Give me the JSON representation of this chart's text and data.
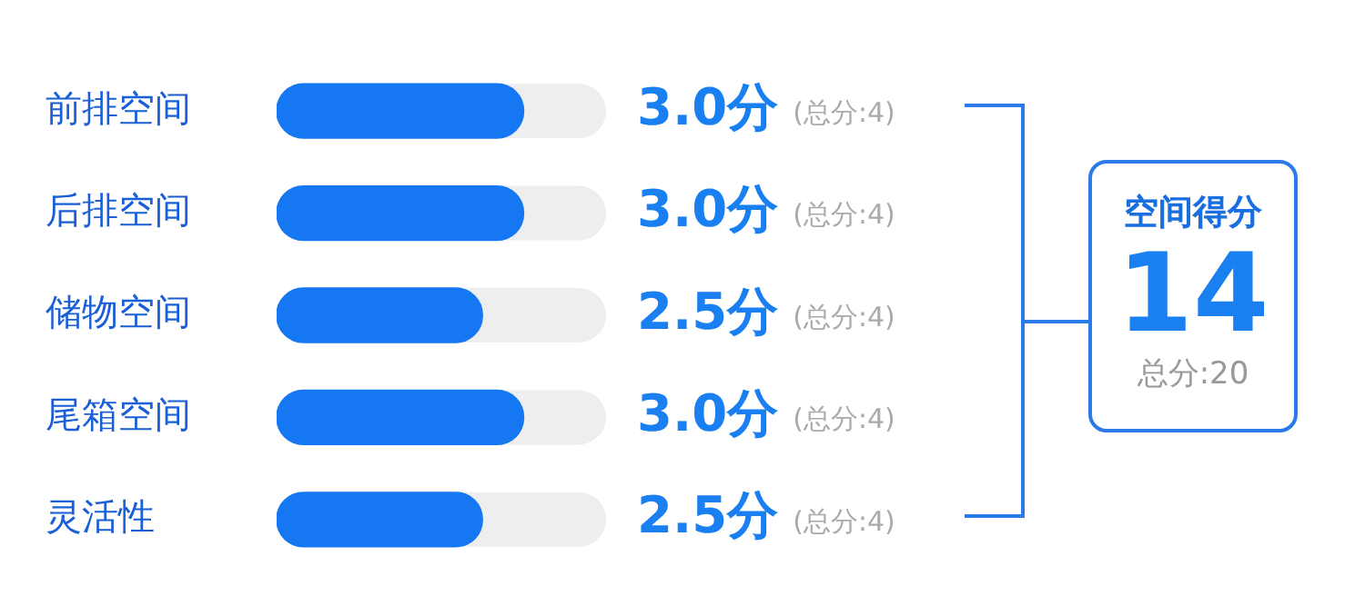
{
  "chart_data": {
    "type": "bar",
    "orientation": "horizontal",
    "categories": [
      "前排空间",
      "后排空间",
      "储物空间",
      "尾箱空间",
      "灵活性"
    ],
    "values": [
      3.0,
      3.0,
      2.5,
      3.0,
      2.5
    ],
    "value_labels": [
      "3.0分",
      "3.0分",
      "2.5分",
      "3.0分",
      "2.5分"
    ],
    "color": "#1677f2",
    "xlim": [
      0,
      4
    ],
    "tick_labels": "y",
    "legend": false,
    "annotations": [
      "(总分:4)",
      "(总分:4)",
      "(总分:4)",
      "(总分:4)",
      "(总分:4)",
      "空间得分",
      "14",
      "总分:20"
    ]
  }
}
